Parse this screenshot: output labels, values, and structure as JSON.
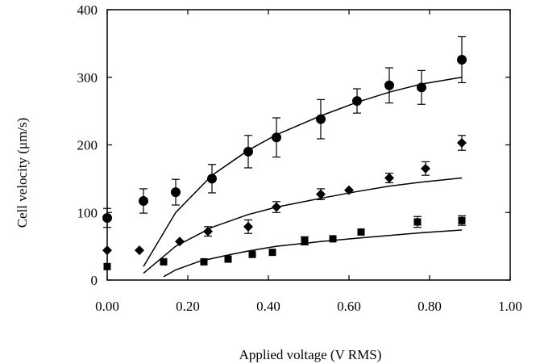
{
  "chart_data": {
    "type": "scatter",
    "title": "",
    "xlabel": "Applied voltage (V RMS)",
    "ylabel": "Cell velocity (μm/s)",
    "xlim": [
      0,
      1.0
    ],
    "ylim": [
      0,
      400
    ],
    "x_ticks": [
      "0.00",
      "0.20",
      "0.40",
      "0.60",
      "0.80",
      "1.00"
    ],
    "x_tick_values": [
      0,
      0.2,
      0.4,
      0.6,
      0.8,
      1.0
    ],
    "y_ticks": [
      "0",
      "100",
      "200",
      "300",
      "400"
    ],
    "y_tick_values": [
      0,
      100,
      200,
      300,
      400
    ],
    "grid": false,
    "series": [
      {
        "marker": "circle",
        "points": [
          {
            "x": 0.0,
            "y": 92,
            "err": 14
          },
          {
            "x": 0.09,
            "y": 117,
            "err": 18
          },
          {
            "x": 0.17,
            "y": 130,
            "err": 19
          },
          {
            "x": 0.26,
            "y": 150,
            "err": 21
          },
          {
            "x": 0.35,
            "y": 190,
            "err": 24
          },
          {
            "x": 0.42,
            "y": 211,
            "err": 29
          },
          {
            "x": 0.53,
            "y": 238,
            "err": 29
          },
          {
            "x": 0.62,
            "y": 265,
            "err": 18
          },
          {
            "x": 0.7,
            "y": 288,
            "err": 26
          },
          {
            "x": 0.78,
            "y": 285,
            "err": 25
          },
          {
            "x": 0.88,
            "y": 326,
            "err": 34
          }
        ],
        "fit": [
          [
            0.09,
            20
          ],
          [
            0.17,
            100
          ],
          [
            0.26,
            155
          ],
          [
            0.35,
            192
          ],
          [
            0.42,
            215
          ],
          [
            0.53,
            243
          ],
          [
            0.62,
            263
          ],
          [
            0.7,
            278
          ],
          [
            0.78,
            290
          ],
          [
            0.88,
            300
          ]
        ]
      },
      {
        "marker": "diamond",
        "points": [
          {
            "x": 0.0,
            "y": 44,
            "err": 0
          },
          {
            "x": 0.08,
            "y": 44,
            "err": 0
          },
          {
            "x": 0.18,
            "y": 57,
            "err": 0
          },
          {
            "x": 0.25,
            "y": 72,
            "err": 7
          },
          {
            "x": 0.35,
            "y": 79,
            "err": 10
          },
          {
            "x": 0.42,
            "y": 108,
            "err": 8
          },
          {
            "x": 0.53,
            "y": 127,
            "err": 8
          },
          {
            "x": 0.6,
            "y": 133,
            "err": 0
          },
          {
            "x": 0.7,
            "y": 151,
            "err": 7
          },
          {
            "x": 0.79,
            "y": 165,
            "err": 10
          },
          {
            "x": 0.88,
            "y": 203,
            "err": 11
          }
        ],
        "fit": [
          [
            0.09,
            10
          ],
          [
            0.17,
            50
          ],
          [
            0.26,
            78
          ],
          [
            0.35,
            97
          ],
          [
            0.42,
            108
          ],
          [
            0.53,
            121
          ],
          [
            0.62,
            131
          ],
          [
            0.7,
            139
          ],
          [
            0.78,
            145
          ],
          [
            0.88,
            151
          ]
        ]
      },
      {
        "marker": "square",
        "points": [
          {
            "x": 0.0,
            "y": 20,
            "err": 0
          },
          {
            "x": 0.14,
            "y": 27,
            "err": 0
          },
          {
            "x": 0.24,
            "y": 27,
            "err": 0
          },
          {
            "x": 0.3,
            "y": 31,
            "err": 0
          },
          {
            "x": 0.36,
            "y": 38,
            "err": 0
          },
          {
            "x": 0.41,
            "y": 41,
            "err": 0
          },
          {
            "x": 0.49,
            "y": 58,
            "err": 6
          },
          {
            "x": 0.56,
            "y": 61,
            "err": 0
          },
          {
            "x": 0.63,
            "y": 71,
            "err": 0
          },
          {
            "x": 0.77,
            "y": 86,
            "err": 8
          },
          {
            "x": 0.88,
            "y": 88,
            "err": 7
          }
        ],
        "fit": [
          [
            0.14,
            5
          ],
          [
            0.17,
            15
          ],
          [
            0.23,
            28
          ],
          [
            0.3,
            37
          ],
          [
            0.35,
            43
          ],
          [
            0.42,
            50
          ],
          [
            0.53,
            57
          ],
          [
            0.62,
            62
          ],
          [
            0.7,
            66
          ],
          [
            0.78,
            70
          ],
          [
            0.88,
            74
          ]
        ]
      }
    ]
  }
}
